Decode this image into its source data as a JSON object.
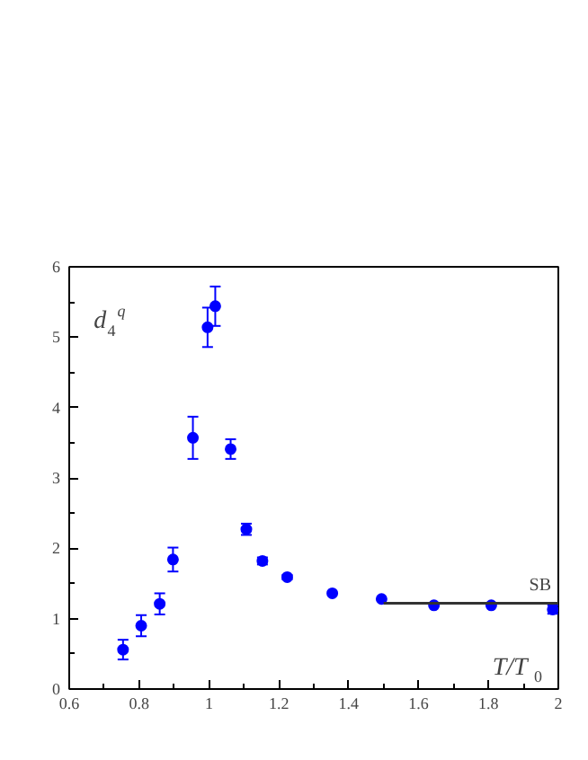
{
  "chart_data": {
    "type": "scatter",
    "xlabel": "T/T$_{0}$",
    "ylabel": "d$_{4}$$^{q}$",
    "xlim": [
      0.6,
      2.0
    ],
    "ylim": [
      0,
      6
    ],
    "xticks": [
      0.6,
      0.8,
      1,
      1.2,
      1.4,
      1.6,
      1.8,
      2
    ],
    "yticks": [
      0,
      1,
      2,
      3,
      4,
      5,
      6
    ],
    "grid": false,
    "marker": "circle",
    "series": [
      {
        "color": "#0000ff",
        "x": [
          0.754,
          0.806,
          0.859,
          0.897,
          0.954,
          0.996,
          1.018,
          1.062,
          1.107,
          1.153,
          1.224,
          1.353,
          1.494,
          1.644,
          1.808,
          1.984
        ],
        "values": [
          0.56,
          0.9,
          1.21,
          1.84,
          3.57,
          5.14,
          5.44,
          3.41,
          2.27,
          1.82,
          1.59,
          1.36,
          1.28,
          1.19,
          1.19,
          1.13
        ],
        "errors": [
          0.14,
          0.15,
          0.15,
          0.17,
          0.3,
          0.28,
          0.28,
          0.14,
          0.08,
          0.05,
          0.03,
          null,
          null,
          null,
          null,
          0.06
        ]
      },
      {
        "type": "line",
        "marker": "none",
        "name": "SB",
        "color": "#333333",
        "x": [
          1.5,
          2.0
        ],
        "values": [
          1.22,
          1.22
        ]
      }
    ]
  }
}
